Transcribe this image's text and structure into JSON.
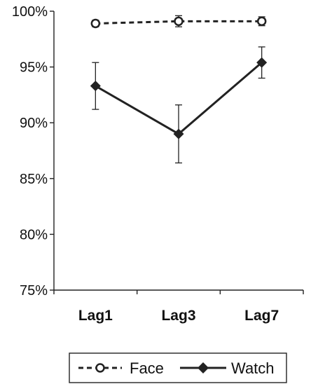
{
  "chart_data": {
    "type": "line",
    "categories": [
      "Lag1",
      "Lag3",
      "Lag7"
    ],
    "y_tick_labels": [
      "75%",
      "80%",
      "85%",
      "90%",
      "95%",
      "100%"
    ],
    "ylim": [
      75,
      100
    ],
    "grid": false,
    "legend_position": "bottom",
    "series": [
      {
        "name": "Face",
        "values": [
          98.9,
          99.1,
          99.1
        ],
        "error": [
          0.3,
          0.5,
          0.4
        ],
        "line_style": "dashed",
        "marker": "open-circle",
        "color": "#222222"
      },
      {
        "name": "Watch",
        "values": [
          93.3,
          89.0,
          95.4
        ],
        "error": [
          2.1,
          2.6,
          1.4
        ],
        "line_style": "solid",
        "marker": "filled-diamond",
        "color": "#222222"
      }
    ]
  }
}
